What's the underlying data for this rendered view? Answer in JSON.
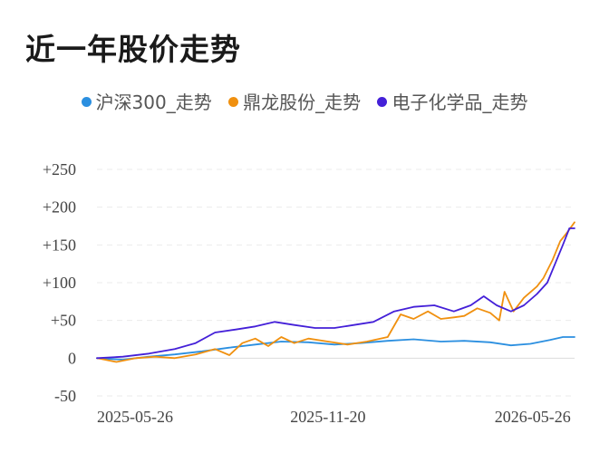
{
  "title": "近一年股价走势",
  "chart_data": {
    "type": "line",
    "x_ticks": [
      "2025-05-26",
      "2025-11-20",
      "2026-05-26"
    ],
    "x_range": [
      "2025-05-26",
      "2026-05-29"
    ],
    "y_ticks": [
      "+250",
      "+200",
      "+150",
      "+100",
      "+50",
      "0",
      "-50"
    ],
    "ylim": [
      -50,
      250
    ],
    "grid": true,
    "legend_position": "top",
    "series": [
      {
        "name": "沪深300_走势",
        "color": "#2b8fe0",
        "points": [
          [
            "2025-05-26",
            0
          ],
          [
            "2025-06-15",
            -2
          ],
          [
            "2025-07-05",
            2
          ],
          [
            "2025-07-25",
            5
          ],
          [
            "2025-08-15",
            9
          ],
          [
            "2025-09-05",
            14
          ],
          [
            "2025-09-25",
            18
          ],
          [
            "2025-10-15",
            22
          ],
          [
            "2025-11-05",
            21
          ],
          [
            "2025-11-25",
            18
          ],
          [
            "2025-12-15",
            20
          ],
          [
            "2026-01-05",
            23
          ],
          [
            "2026-01-25",
            25
          ],
          [
            "2026-02-15",
            22
          ],
          [
            "2026-03-05",
            23
          ],
          [
            "2026-03-25",
            21
          ],
          [
            "2026-04-10",
            17
          ],
          [
            "2026-04-25",
            19
          ],
          [
            "2026-05-10",
            24
          ],
          [
            "2026-05-20",
            28
          ],
          [
            "2026-05-29",
            28
          ]
        ]
      },
      {
        "name": "鼎龙股份_走势",
        "color": "#f0900f",
        "points": [
          [
            "2025-05-26",
            0
          ],
          [
            "2025-06-10",
            -5
          ],
          [
            "2025-06-25",
            0
          ],
          [
            "2025-07-10",
            2
          ],
          [
            "2025-07-25",
            0
          ],
          [
            "2025-08-10",
            5
          ],
          [
            "2025-08-25",
            12
          ],
          [
            "2025-09-05",
            4
          ],
          [
            "2025-09-15",
            20
          ],
          [
            "2025-09-25",
            26
          ],
          [
            "2025-10-05",
            16
          ],
          [
            "2025-10-15",
            28
          ],
          [
            "2025-10-25",
            20
          ],
          [
            "2025-11-05",
            26
          ],
          [
            "2025-11-20",
            22
          ],
          [
            "2025-12-05",
            18
          ],
          [
            "2025-12-20",
            22
          ],
          [
            "2026-01-05",
            28
          ],
          [
            "2026-01-15",
            58
          ],
          [
            "2026-01-25",
            52
          ],
          [
            "2026-02-05",
            62
          ],
          [
            "2026-02-15",
            52
          ],
          [
            "2026-02-25",
            54
          ],
          [
            "2026-03-05",
            56
          ],
          [
            "2026-03-15",
            66
          ],
          [
            "2026-03-25",
            60
          ],
          [
            "2026-04-01",
            50
          ],
          [
            "2026-04-05",
            88
          ],
          [
            "2026-04-12",
            62
          ],
          [
            "2026-04-20",
            80
          ],
          [
            "2026-04-30",
            95
          ],
          [
            "2026-05-05",
            106
          ],
          [
            "2026-05-12",
            130
          ],
          [
            "2026-05-18",
            155
          ],
          [
            "2026-05-24",
            168
          ],
          [
            "2026-05-29",
            180
          ]
        ]
      },
      {
        "name": "电子化学品_走势",
        "color": "#4420d8",
        "points": [
          [
            "2025-05-26",
            0
          ],
          [
            "2025-06-15",
            2
          ],
          [
            "2025-07-05",
            6
          ],
          [
            "2025-07-25",
            12
          ],
          [
            "2025-08-10",
            20
          ],
          [
            "2025-08-25",
            34
          ],
          [
            "2025-09-10",
            38
          ],
          [
            "2025-09-25",
            42
          ],
          [
            "2025-10-10",
            48
          ],
          [
            "2025-10-25",
            44
          ],
          [
            "2025-11-10",
            40
          ],
          [
            "2025-11-25",
            40
          ],
          [
            "2025-12-10",
            44
          ],
          [
            "2025-12-25",
            48
          ],
          [
            "2026-01-10",
            62
          ],
          [
            "2026-01-25",
            68
          ],
          [
            "2026-02-10",
            70
          ],
          [
            "2026-02-25",
            62
          ],
          [
            "2026-03-10",
            70
          ],
          [
            "2026-03-20",
            82
          ],
          [
            "2026-03-30",
            70
          ],
          [
            "2026-04-10",
            62
          ],
          [
            "2026-04-20",
            70
          ],
          [
            "2026-04-30",
            85
          ],
          [
            "2026-05-08",
            100
          ],
          [
            "2026-05-14",
            125
          ],
          [
            "2026-05-20",
            150
          ],
          [
            "2026-05-25",
            172
          ],
          [
            "2026-05-29",
            172
          ]
        ]
      }
    ]
  }
}
